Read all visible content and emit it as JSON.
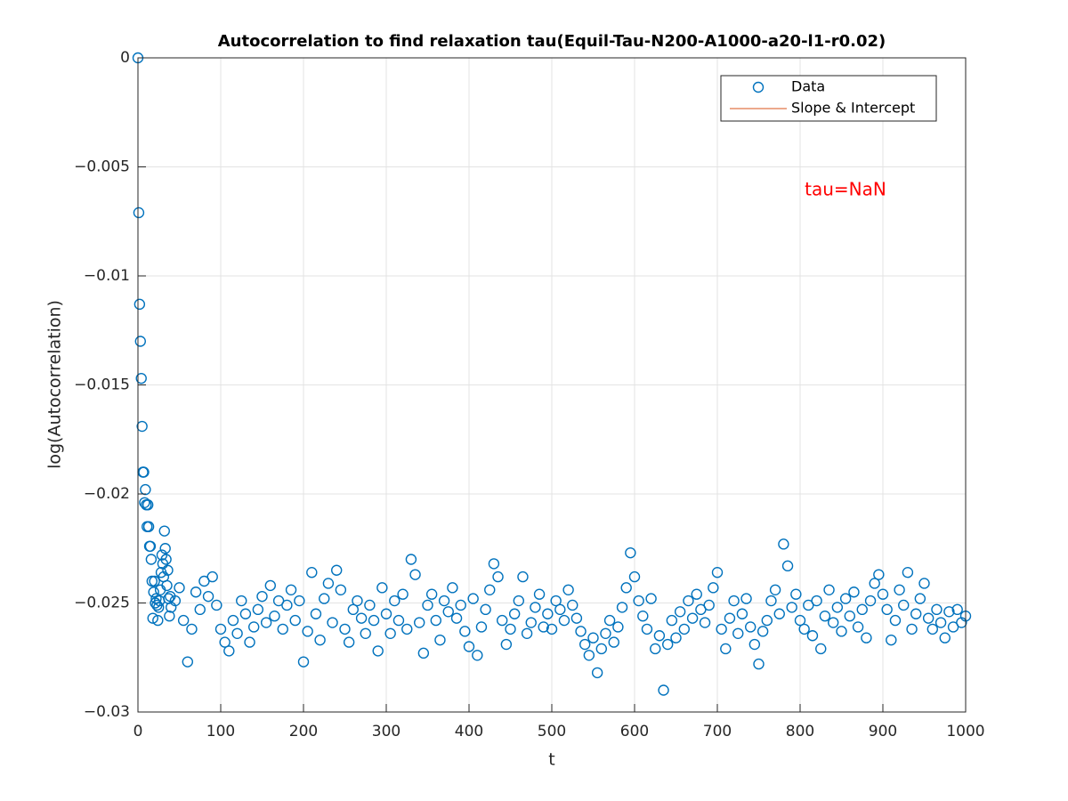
{
  "chart_data": {
    "type": "scatter",
    "title": "Autocorrelation to find relaxation tau(Equil-Tau-N200-A1000-a20-l1-r0.02)",
    "xlabel": "t",
    "ylabel": "log(Autocorrelation)",
    "annotation": {
      "text": "tau=NaN",
      "color": "#ff0000"
    },
    "xlim": [
      0,
      1000
    ],
    "ylim": [
      -0.03,
      0
    ],
    "xticks": [
      0,
      100,
      200,
      300,
      400,
      500,
      600,
      700,
      800,
      900,
      1000
    ],
    "yticks": [
      {
        "value": -0.03,
        "label": "−0.03"
      },
      {
        "value": -0.025,
        "label": "−0.025"
      },
      {
        "value": -0.02,
        "label": "−0.02"
      },
      {
        "value": -0.015,
        "label": "−0.015"
      },
      {
        "value": -0.01,
        "label": "−0.01"
      },
      {
        "value": -0.005,
        "label": "−0.005"
      },
      0
    ],
    "grid": true,
    "legend": "upper right",
    "x": [
      0,
      1,
      2,
      3,
      4,
      5,
      6,
      7,
      8,
      9,
      10,
      11,
      12,
      13,
      14,
      15,
      16,
      17,
      18,
      19,
      20,
      21,
      22,
      23,
      24,
      25,
      26,
      27,
      28,
      29,
      30,
      31,
      32,
      33,
      34,
      35,
      36,
      37,
      38,
      39,
      40,
      45,
      50,
      55,
      60,
      65,
      70,
      75,
      80,
      85,
      90,
      95,
      100,
      105,
      110,
      115,
      120,
      125,
      130,
      135,
      140,
      145,
      150,
      155,
      160,
      165,
      170,
      175,
      180,
      185,
      190,
      195,
      200,
      205,
      210,
      215,
      220,
      225,
      230,
      235,
      240,
      245,
      250,
      255,
      260,
      265,
      270,
      275,
      280,
      285,
      290,
      295,
      300,
      305,
      310,
      315,
      320,
      325,
      330,
      335,
      340,
      345,
      350,
      355,
      360,
      365,
      370,
      375,
      380,
      385,
      390,
      395,
      400,
      405,
      410,
      415,
      420,
      425,
      430,
      435,
      440,
      445,
      450,
      455,
      460,
      465,
      470,
      475,
      480,
      485,
      490,
      495,
      500,
      505,
      510,
      515,
      520,
      525,
      530,
      535,
      540,
      545,
      550,
      555,
      560,
      565,
      570,
      575,
      580,
      585,
      590,
      595,
      600,
      605,
      610,
      615,
      620,
      625,
      630,
      635,
      640,
      645,
      650,
      655,
      660,
      665,
      670,
      675,
      680,
      685,
      690,
      695,
      700,
      705,
      710,
      715,
      720,
      725,
      730,
      735,
      740,
      745,
      750,
      755,
      760,
      765,
      770,
      775,
      780,
      785,
      790,
      795,
      800,
      805,
      810,
      815,
      820,
      825,
      830,
      835,
      840,
      845,
      850,
      855,
      860,
      865,
      870,
      875,
      880,
      885,
      890,
      895,
      900,
      905,
      910,
      915,
      920,
      925,
      930,
      935,
      940,
      945,
      950,
      955,
      960,
      965,
      970,
      975,
      980,
      985,
      990,
      995,
      1000
    ],
    "series": [
      {
        "name": "Data",
        "color": "#0072bd",
        "marker": "circle",
        "values": [
          0,
          -0.0071,
          -0.0113,
          -0.013,
          -0.0147,
          -0.0169,
          -0.019,
          -0.019,
          -0.0204,
          -0.0198,
          -0.0205,
          -0.0215,
          -0.0205,
          -0.0215,
          -0.0224,
          -0.0224,
          -0.023,
          -0.024,
          -0.0257,
          -0.0245,
          -0.024,
          -0.025,
          -0.0248,
          -0.0251,
          -0.0258,
          -0.0252,
          -0.0249,
          -0.0244,
          -0.0236,
          -0.0228,
          -0.0232,
          -0.0238,
          -0.0217,
          -0.0225,
          -0.023,
          -0.0242,
          -0.0235,
          -0.0248,
          -0.0256,
          -0.0247,
          -0.0252,
          -0.0249,
          -0.0243,
          -0.0258,
          -0.0277,
          -0.0262,
          -0.0245,
          -0.0253,
          -0.024,
          -0.0247,
          -0.0238,
          -0.0251,
          -0.0262,
          -0.0268,
          -0.0272,
          -0.0258,
          -0.0264,
          -0.0249,
          -0.0255,
          -0.0268,
          -0.0261,
          -0.0253,
          -0.0247,
          -0.0259,
          -0.0242,
          -0.0256,
          -0.0249,
          -0.0262,
          -0.0251,
          -0.0244,
          -0.0258,
          -0.0249,
          -0.0277,
          -0.0263,
          -0.0236,
          -0.0255,
          -0.0267,
          -0.0248,
          -0.0241,
          -0.0259,
          -0.0235,
          -0.0244,
          -0.0262,
          -0.0268,
          -0.0253,
          -0.0249,
          -0.0257,
          -0.0264,
          -0.0251,
          -0.0258,
          -0.0272,
          -0.0243,
          -0.0255,
          -0.0264,
          -0.0249,
          -0.0258,
          -0.0246,
          -0.0262,
          -0.023,
          -0.0237,
          -0.0259,
          -0.0273,
          -0.0251,
          -0.0246,
          -0.0258,
          -0.0267,
          -0.0249,
          -0.0254,
          -0.0243,
          -0.0257,
          -0.0251,
          -0.0263,
          -0.027,
          -0.0248,
          -0.0274,
          -0.0261,
          -0.0253,
          -0.0244,
          -0.0232,
          -0.0238,
          -0.0258,
          -0.0269,
          -0.0262,
          -0.0255,
          -0.0249,
          -0.0238,
          -0.0264,
          -0.0259,
          -0.0252,
          -0.0246,
          -0.0261,
          -0.0255,
          -0.0262,
          -0.0249,
          -0.0253,
          -0.0258,
          -0.0244,
          -0.0251,
          -0.0257,
          -0.0263,
          -0.0269,
          -0.0274,
          -0.0266,
          -0.0282,
          -0.0271,
          -0.0264,
          -0.0258,
          -0.0268,
          -0.0261,
          -0.0252,
          -0.0243,
          -0.0227,
          -0.0238,
          -0.0249,
          -0.0256,
          -0.0262,
          -0.0248,
          -0.0271,
          -0.0265,
          -0.029,
          -0.0269,
          -0.0258,
          -0.0266,
          -0.0254,
          -0.0262,
          -0.0249,
          -0.0257,
          -0.0246,
          -0.0253,
          -0.0259,
          -0.0251,
          -0.0243,
          -0.0236,
          -0.0262,
          -0.0271,
          -0.0257,
          -0.0249,
          -0.0264,
          -0.0255,
          -0.0248,
          -0.0261,
          -0.0269,
          -0.0278,
          -0.0263,
          -0.0258,
          -0.0249,
          -0.0244,
          -0.0255,
          -0.0223,
          -0.0233,
          -0.0252,
          -0.0246,
          -0.0258,
          -0.0262,
          -0.0251,
          -0.0265,
          -0.0249,
          -0.0271,
          -0.0256,
          -0.0244,
          -0.0259,
          -0.0252,
          -0.0263,
          -0.0248,
          -0.0256,
          -0.0245,
          -0.0261,
          -0.0253,
          -0.0266,
          -0.0249,
          -0.0241,
          -0.0237,
          -0.0246,
          -0.0253,
          -0.0267,
          -0.0258,
          -0.0244,
          -0.0251,
          -0.0236,
          -0.0262,
          -0.0255,
          -0.0248,
          -0.0241,
          -0.0257,
          -0.0262,
          -0.0253,
          -0.0259,
          -0.0266,
          -0.0254,
          -0.0261,
          -0.0253,
          -0.0259,
          -0.0256
        ]
      },
      {
        "name": "Slope & Intercept",
        "color": "#d95319",
        "marker": "line",
        "values": null
      }
    ]
  }
}
